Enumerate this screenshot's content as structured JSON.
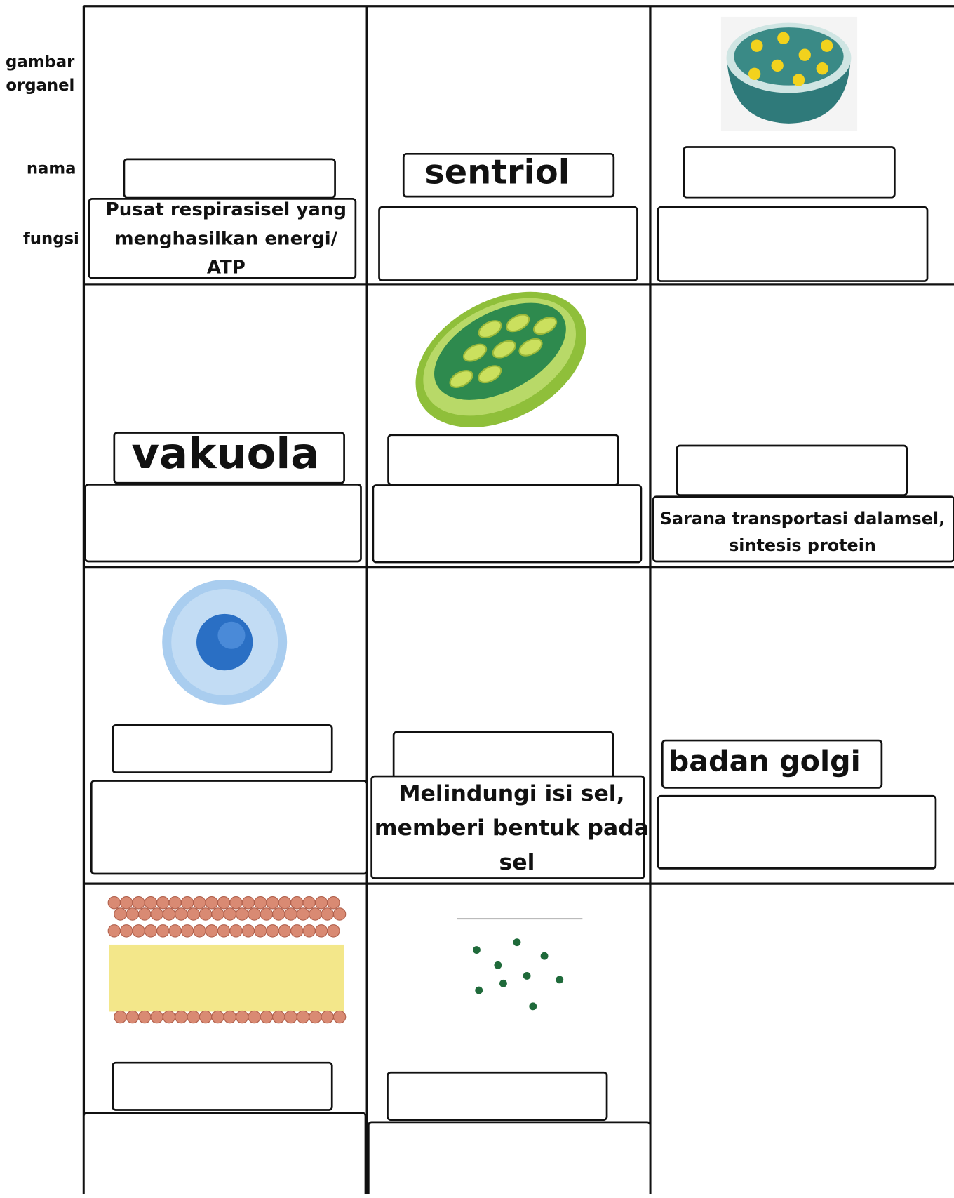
{
  "row_labels": {
    "picture": [
      "gambar",
      "organel"
    ],
    "name": "nama",
    "function": "fungsi"
  },
  "grid": {
    "row1": {
      "col1": {
        "function": [
          "Pusat respirasisel yang",
          "menghasilkan energi/",
          "ATP"
        ]
      },
      "col2": {
        "name": "sentriol"
      }
    },
    "row2": {
      "col1": {
        "name": "vakuola"
      },
      "col3": {
        "function": [
          "Sarana transportasi dalamsel,",
          "sintesis protein"
        ]
      }
    },
    "row3": {
      "col2": {
        "function": [
          "Melindungi isi sel,",
          "memberi bentuk pada",
          "sel"
        ]
      },
      "col3": {
        "name": "badan golgi"
      }
    }
  }
}
